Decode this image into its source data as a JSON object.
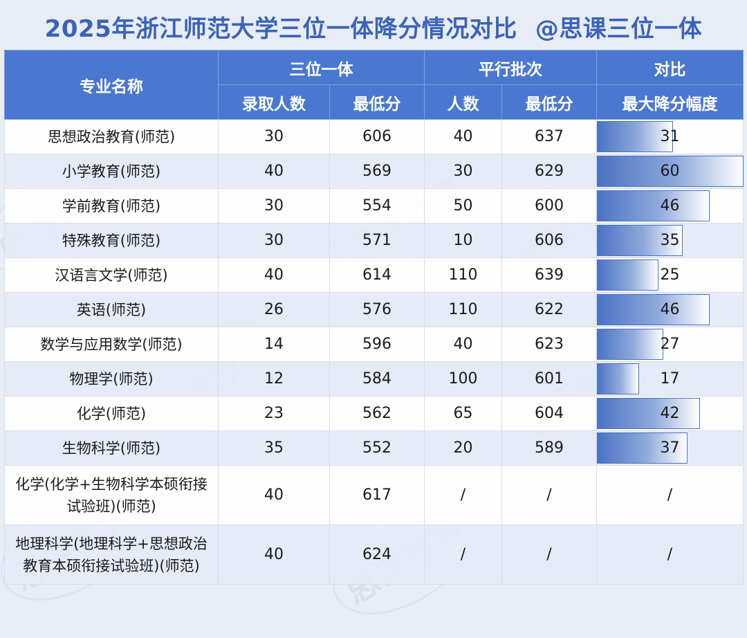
{
  "title": "2025年浙江师范大学三位一体降分情况对比",
  "handle": "@思课三位一体",
  "watermark_text": "思课教育",
  "colors": {
    "header_bg": "#4a78d0",
    "title": "#3a63b8",
    "bar": "#4a72c4"
  },
  "header": {
    "major": "专业名称",
    "group_sanwei": "三位一体",
    "group_pingxing": "平行批次",
    "group_compare": "对比",
    "sanwei_count": "录取人数",
    "sanwei_min": "最低分",
    "pingxing_count": "人数",
    "pingxing_min": "最低分",
    "compare_max": "最大降分幅度"
  },
  "bar_max": 60,
  "rows": [
    {
      "name": "思想政治教育(师范)",
      "sw_count": "30",
      "sw_min": "606",
      "px_count": "40",
      "px_min": "637",
      "drop": "31",
      "drop_value": 31
    },
    {
      "name": "小学教育(师范)",
      "sw_count": "40",
      "sw_min": "569",
      "px_count": "30",
      "px_min": "629",
      "drop": "60",
      "drop_value": 60
    },
    {
      "name": "学前教育(师范)",
      "sw_count": "30",
      "sw_min": "554",
      "px_count": "50",
      "px_min": "600",
      "drop": "46",
      "drop_value": 46
    },
    {
      "name": "特殊教育(师范)",
      "sw_count": "30",
      "sw_min": "571",
      "px_count": "10",
      "px_min": "606",
      "drop": "35",
      "drop_value": 35
    },
    {
      "name": "汉语言文学(师范)",
      "sw_count": "40",
      "sw_min": "614",
      "px_count": "110",
      "px_min": "639",
      "drop": "25",
      "drop_value": 25
    },
    {
      "name": "英语(师范)",
      "sw_count": "26",
      "sw_min": "576",
      "px_count": "110",
      "px_min": "622",
      "drop": "46",
      "drop_value": 46
    },
    {
      "name": "数学与应用数学(师范)",
      "sw_count": "14",
      "sw_min": "596",
      "px_count": "40",
      "px_min": "623",
      "drop": "27",
      "drop_value": 27
    },
    {
      "name": "物理学(师范)",
      "sw_count": "12",
      "sw_min": "584",
      "px_count": "100",
      "px_min": "601",
      "drop": "17",
      "drop_value": 17
    },
    {
      "name": "化学(师范)",
      "sw_count": "23",
      "sw_min": "562",
      "px_count": "65",
      "px_min": "604",
      "drop": "42",
      "drop_value": 42
    },
    {
      "name": "生物科学(师范)",
      "sw_count": "35",
      "sw_min": "552",
      "px_count": "20",
      "px_min": "589",
      "drop": "37",
      "drop_value": 37
    },
    {
      "name_line1": "化学(化学+生物科学本硕衔接",
      "name_line2": "试验班)(师范)",
      "sw_count": "40",
      "sw_min": "617",
      "px_count": "/",
      "px_min": "/",
      "drop": "/"
    },
    {
      "name_line1": "地理科学(地理科学+思想政治",
      "name_line2": "教育本硕衔接试验班)(师范)",
      "sw_count": "40",
      "sw_min": "624",
      "px_count": "/",
      "px_min": "/",
      "drop": "/"
    }
  ]
}
